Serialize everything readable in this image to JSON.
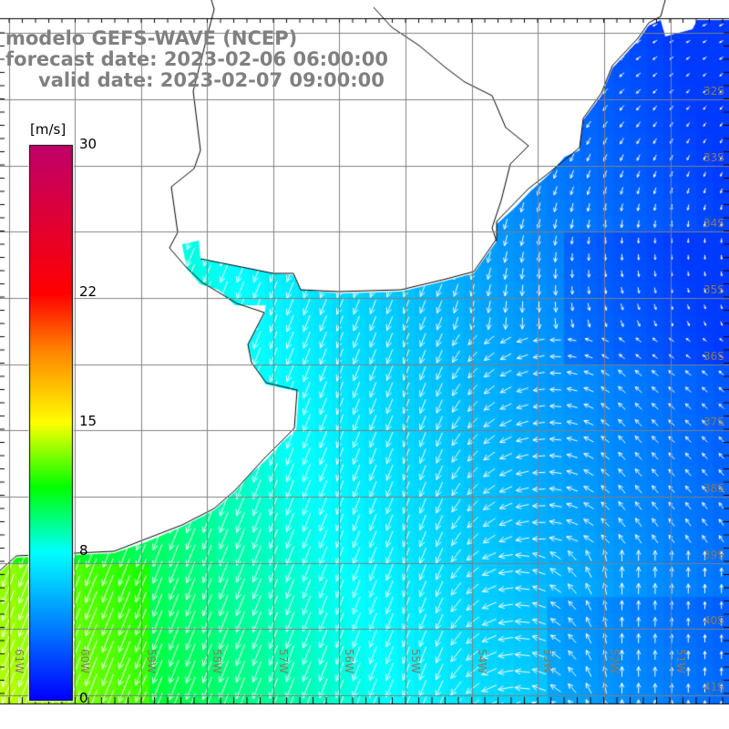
{
  "title": {
    "model": "modelo GEFS-WAVE (NCEP)",
    "forecast": "forecast date: 2023-02-06 06:00:00",
    "valid": "valid date: 2023-02-07 09:00:00"
  },
  "colorbar": {
    "units": "[m/s]",
    "ticks": [
      "30",
      "22",
      "15",
      "8",
      "0"
    ],
    "tick_values": [
      30,
      22,
      15,
      8,
      0
    ],
    "range": [
      0,
      30
    ],
    "colors": [
      "#0000ff",
      "#0080ff",
      "#00ffff",
      "#00ff00",
      "#ffff00",
      "#ff8000",
      "#ff0000",
      "#c0006a"
    ]
  },
  "axes": {
    "lat_labels": [
      "32S",
      "33S",
      "34S",
      "35S",
      "36S",
      "37S",
      "38S",
      "39S",
      "40S",
      "41S"
    ],
    "lon_labels": [
      "61W",
      "60W",
      "59W",
      "58W",
      "57W",
      "56W",
      "55W",
      "54W",
      "53W",
      "52W",
      "51W"
    ]
  },
  "colors": {
    "grid": "#808080",
    "label": "#8a7a60",
    "coast": "#000000",
    "land": "#ffffff"
  }
}
